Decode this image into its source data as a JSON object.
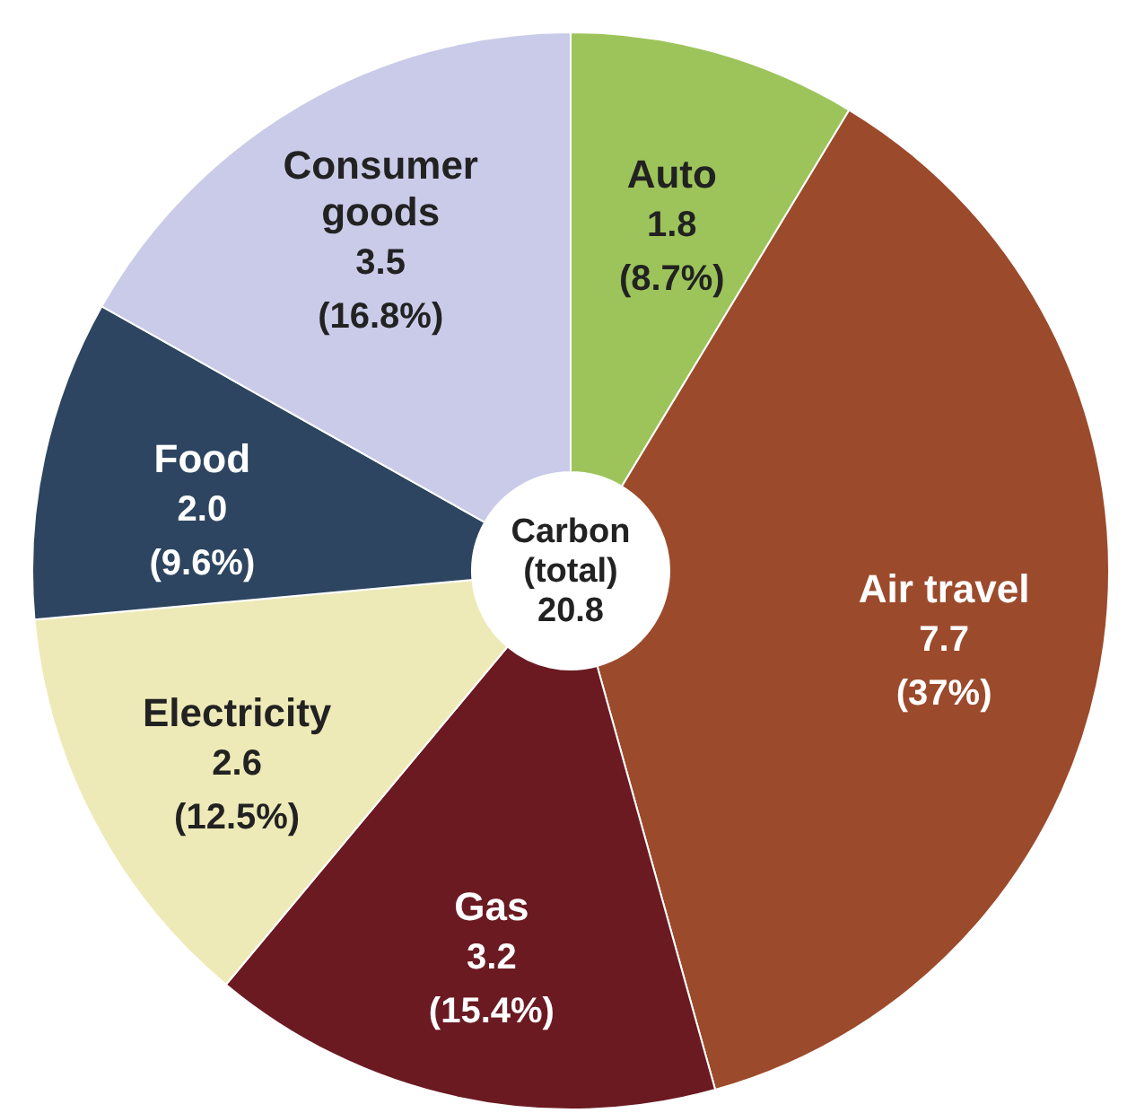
{
  "chart_data": {
    "type": "donut",
    "categories": [
      "Auto",
      "Air travel",
      "Gas",
      "Electricity",
      "Food",
      "Consumer goods"
    ],
    "values": [
      1.8,
      7.7,
      3.2,
      2.6,
      2.0,
      3.5
    ],
    "value_labels": [
      "1.8 (8.7%)",
      "7.7 (37%)",
      "3.2 (15.4%)",
      "2.6 (12.5%)",
      "2.0 (9.6%)",
      "3.5 (16.8%)"
    ],
    "colors": [
      "#9dc45a",
      "#9c4a2c",
      "#6b1a22",
      "#eeeab8",
      "#2d4560",
      "#c9cbe8"
    ],
    "annotations": [
      "Carbon (total) 20.8"
    ]
  }
}
